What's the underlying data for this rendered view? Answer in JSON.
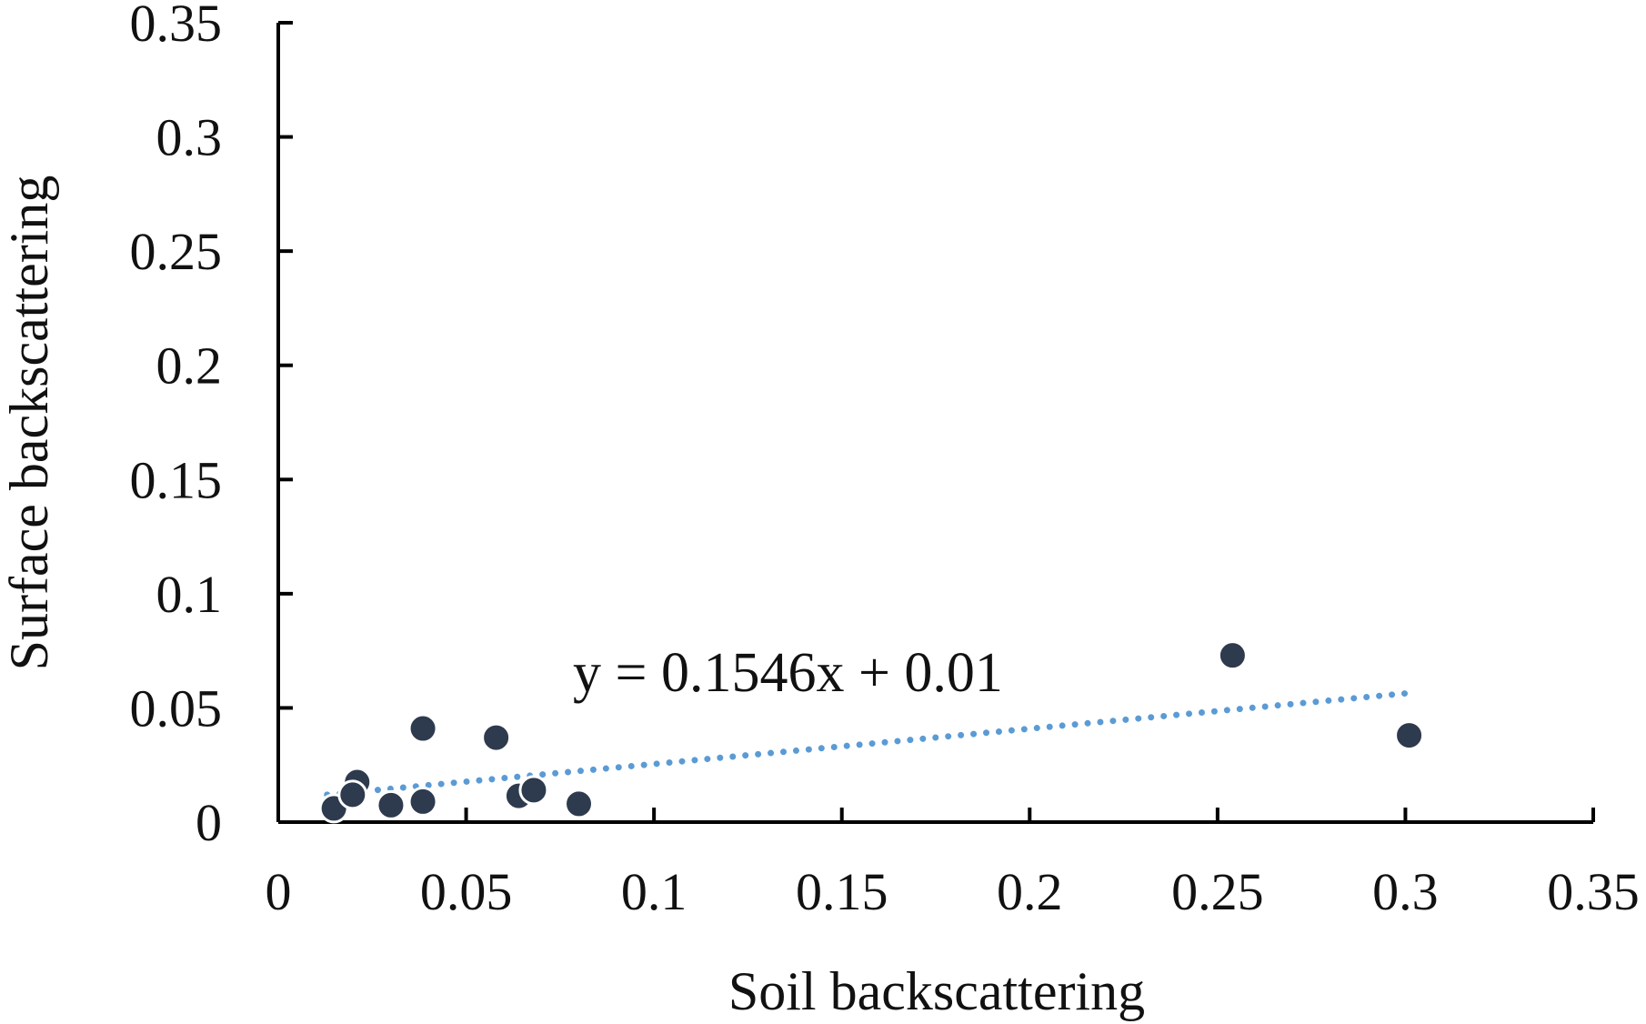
{
  "chart_data": {
    "type": "scatter",
    "x_label": "Soil backscattering",
    "y_label": "Surface backscattering",
    "x": [
      0.0148,
      0.021,
      0.0198,
      0.03,
      0.0385,
      0.0385,
      0.058,
      0.064,
      0.068,
      0.08,
      0.254,
      0.301
    ],
    "values": [
      0.006,
      0.0175,
      0.012,
      0.0074,
      0.041,
      0.009,
      0.037,
      0.0115,
      0.014,
      0.008,
      0.073,
      0.038
    ],
    "color": "#2e3a4e",
    "xlim": [
      0,
      0.35
    ],
    "xticks": [
      0,
      0.05,
      0.1,
      0.15,
      0.2,
      0.25,
      0.3,
      0.35
    ],
    "ylim": [
      0,
      0.35
    ],
    "yticks": [
      0,
      0.05,
      0.1,
      0.15,
      0.2,
      0.25,
      0.3,
      0.35
    ],
    "trendline": {
      "x": [
        0.013,
        0.301
      ],
      "y": [
        0.012,
        0.0565
      ],
      "color": "#5b9bd5",
      "label": "y = 0.1546x + 0.01"
    }
  }
}
